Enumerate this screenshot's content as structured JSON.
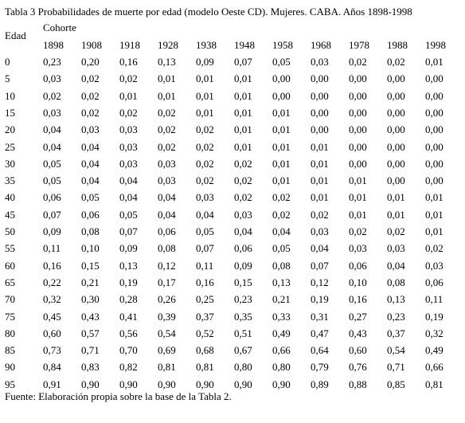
{
  "header": {
    "title": "Tabla 3 Probabilidades de muerte por edad (modelo Oeste CD). Mujeres. CABA. Años 1898-1998"
  },
  "table": {
    "row_header": "Edad",
    "group_header": "Cohorte",
    "columns": [
      "1898",
      "1908",
      "1918",
      "1928",
      "1938",
      "1948",
      "1958",
      "1968",
      "1978",
      "1988",
      "1998"
    ],
    "rows": [
      [
        "0",
        "0,23",
        "0,20",
        "0,16",
        "0,13",
        "0,09",
        "0,07",
        "0,05",
        "0,03",
        "0,02",
        "0,02",
        "0,01"
      ],
      [
        "5",
        "0,03",
        "0,02",
        "0,02",
        "0,01",
        "0,01",
        "0,01",
        "0,00",
        "0,00",
        "0,00",
        "0,00",
        "0,00"
      ],
      [
        "10",
        "0,02",
        "0,02",
        "0,01",
        "0,01",
        "0,01",
        "0,01",
        "0,00",
        "0,00",
        "0,00",
        "0,00",
        "0,00"
      ],
      [
        "15",
        "0,03",
        "0,02",
        "0,02",
        "0,02",
        "0,01",
        "0,01",
        "0,01",
        "0,00",
        "0,00",
        "0,00",
        "0,00"
      ],
      [
        "20",
        "0,04",
        "0,03",
        "0,03",
        "0,02",
        "0,02",
        "0,01",
        "0,01",
        "0,00",
        "0,00",
        "0,00",
        "0,00"
      ],
      [
        "25",
        "0,04",
        "0,04",
        "0,03",
        "0,02",
        "0,02",
        "0,01",
        "0,01",
        "0,01",
        "0,00",
        "0,00",
        "0,00"
      ],
      [
        "30",
        "0,05",
        "0,04",
        "0,03",
        "0,03",
        "0,02",
        "0,02",
        "0,01",
        "0,01",
        "0,00",
        "0,00",
        "0,00"
      ],
      [
        "35",
        "0,05",
        "0,04",
        "0,04",
        "0,03",
        "0,02",
        "0,02",
        "0,01",
        "0,01",
        "0,01",
        "0,00",
        "0,00"
      ],
      [
        "40",
        "0,06",
        "0,05",
        "0,04",
        "0,04",
        "0,03",
        "0,02",
        "0,02",
        "0,01",
        "0,01",
        "0,01",
        "0,01"
      ],
      [
        "45",
        "0,07",
        "0,06",
        "0,05",
        "0,04",
        "0,04",
        "0,03",
        "0,02",
        "0,02",
        "0,01",
        "0,01",
        "0,01"
      ],
      [
        "50",
        "0,09",
        "0,08",
        "0,07",
        "0,06",
        "0,05",
        "0,04",
        "0,04",
        "0,03",
        "0,02",
        "0,02",
        "0,01"
      ],
      [
        "55",
        "0,11",
        "0,10",
        "0,09",
        "0,08",
        "0,07",
        "0,06",
        "0,05",
        "0,04",
        "0,03",
        "0,03",
        "0,02"
      ],
      [
        "60",
        "0,16",
        "0,15",
        "0,13",
        "0,12",
        "0,11",
        "0,09",
        "0,08",
        "0,07",
        "0,06",
        "0,04",
        "0,03"
      ],
      [
        "65",
        "0,22",
        "0,21",
        "0,19",
        "0,17",
        "0,16",
        "0,15",
        "0,13",
        "0,12",
        "0,10",
        "0,08",
        "0,06"
      ],
      [
        "70",
        "0,32",
        "0,30",
        "0,28",
        "0,26",
        "0,25",
        "0,23",
        "0,21",
        "0,19",
        "0,16",
        "0,13",
        "0,11"
      ],
      [
        "75",
        "0,45",
        "0,43",
        "0,41",
        "0,39",
        "0,37",
        "0,35",
        "0,33",
        "0,31",
        "0,27",
        "0,23",
        "0,19"
      ],
      [
        "80",
        "0,60",
        "0,57",
        "0,56",
        "0,54",
        "0,52",
        "0,51",
        "0,49",
        "0,47",
        "0,43",
        "0,37",
        "0,32"
      ],
      [
        "85",
        "0,73",
        "0,71",
        "0,70",
        "0,69",
        "0,68",
        "0,67",
        "0,66",
        "0,64",
        "0,60",
        "0,54",
        "0,49"
      ],
      [
        "90",
        "0,84",
        "0,83",
        "0,82",
        "0,81",
        "0,81",
        "0,80",
        "0,80",
        "0,79",
        "0,76",
        "0,71",
        "0,66"
      ],
      [
        "95",
        "0,91",
        "0,90",
        "0,90",
        "0,90",
        "0,90",
        "0,90",
        "0,90",
        "0,89",
        "0,88",
        "0,85",
        "0,81"
      ]
    ]
  },
  "footer": {
    "source": "Fuente: Elaboración propia sobre la base de la Tabla 2."
  }
}
